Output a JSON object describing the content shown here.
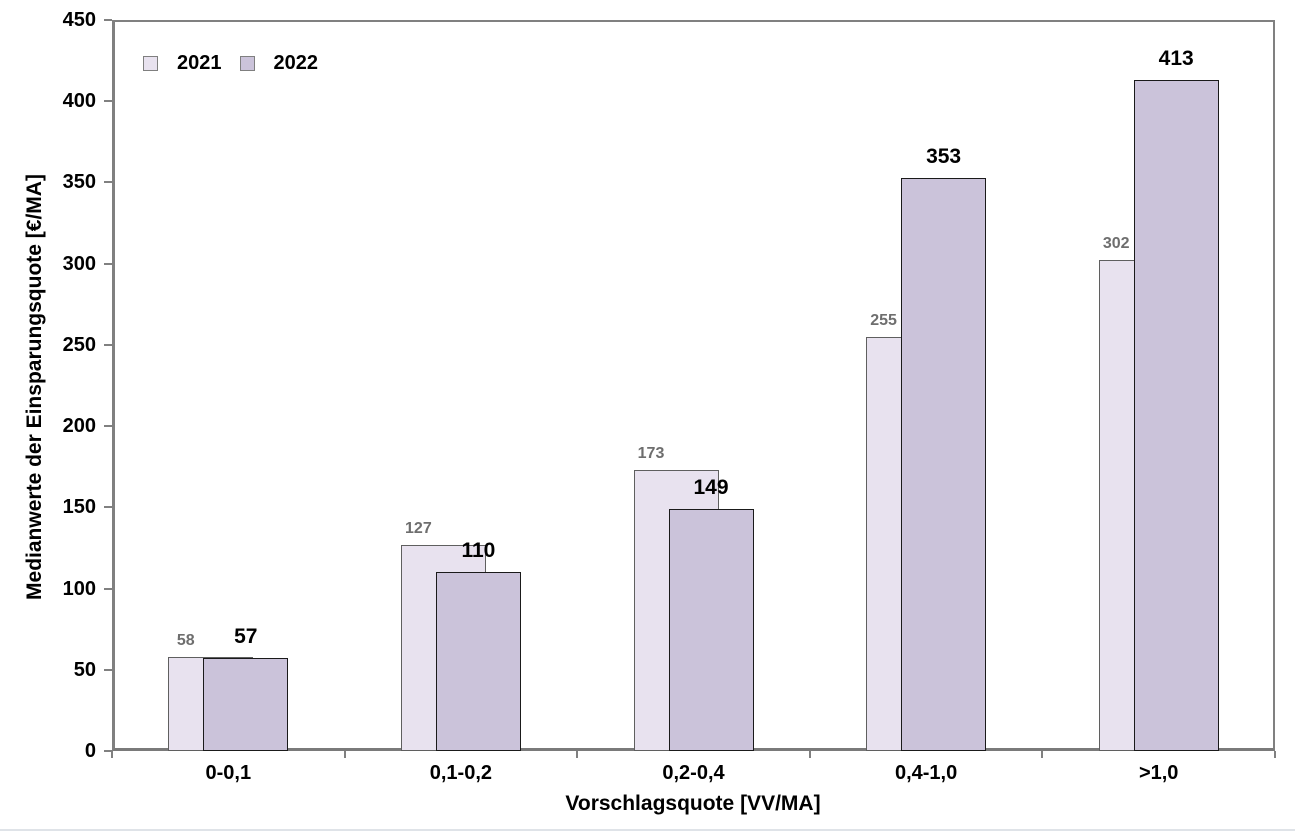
{
  "chart_data": {
    "type": "bar",
    "categories": [
      "0-0,1",
      "0,1-0,2",
      "0,2-0,4",
      "0,4-1,0",
      ">1,0"
    ],
    "series": [
      {
        "name": "2021",
        "values": [
          58,
          127,
          173,
          255,
          302
        ],
        "fill_color": "#e8e2ef",
        "border_color": "#5f5f5f",
        "label_color": "#6e6e6e"
      },
      {
        "name": "2022",
        "values": [
          57,
          110,
          149,
          353,
          413
        ],
        "fill_color": "#cbc3da",
        "border_color": "#1a1a1a",
        "label_color": "#000000"
      }
    ],
    "title": "",
    "xlabel": "Vorschlagsquote [VV/MA]",
    "ylabel": "Medianwerte der Einsparungsquote [€/MA]",
    "ylim": [
      0,
      450
    ],
    "ytick_step": 50,
    "yticks": [
      0,
      50,
      100,
      150,
      200,
      250,
      300,
      350,
      400,
      450
    ],
    "grid": false,
    "legend_position": "top-left",
    "bar_style": "overlapped",
    "axis_color": "#808080"
  }
}
